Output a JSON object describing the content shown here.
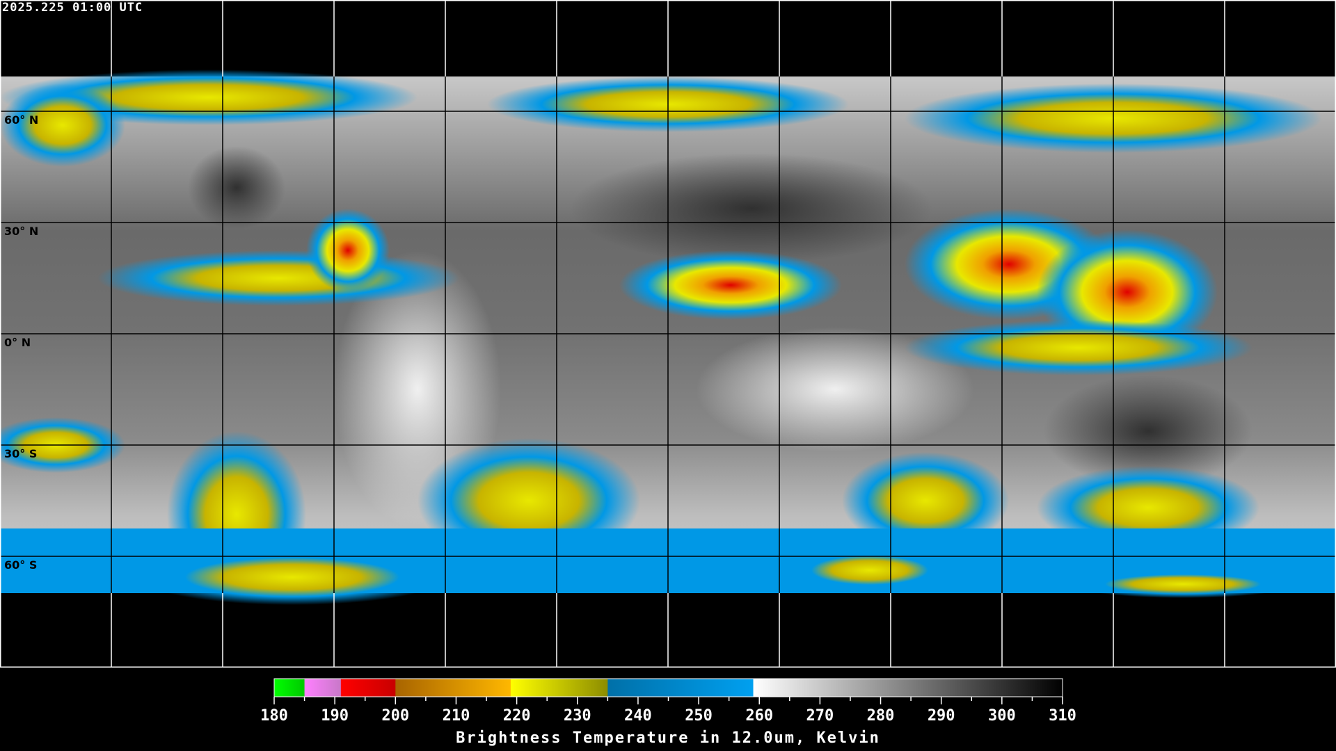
{
  "header": {
    "timestamp": "2025.225 01:00 UTC"
  },
  "map": {
    "projection": "equirectangular",
    "lon_grid_spacing_deg": 30,
    "lat_grid_spacing_deg": 30,
    "lat_labels": [
      "60° N",
      "30° N",
      "0° N",
      "30° S",
      "60° S"
    ],
    "lat_values": [
      60,
      30,
      0,
      -30,
      -60
    ],
    "data_lat_range": [
      76,
      -67
    ],
    "colors": {
      "background": "#000000",
      "coastline_polar": "#ffffff",
      "coastline_data": "#000000"
    }
  },
  "colorbar": {
    "title": "Brightness Temperature in 12.0um, Kelvin",
    "range": [
      180,
      310
    ],
    "tick_step": 5,
    "labels": [
      "180",
      "190",
      "200",
      "210",
      "220",
      "230",
      "240",
      "250",
      "260",
      "270",
      "280",
      "290",
      "300",
      "310"
    ],
    "segments": [
      {
        "from": 180,
        "to": 185,
        "c1": "#00ff00",
        "c2": "#00c800"
      },
      {
        "from": 185,
        "to": 191,
        "c1": "#ff80ff",
        "c2": "#c878c8"
      },
      {
        "from": 191,
        "to": 200,
        "c1": "#ff0000",
        "c2": "#c80000"
      },
      {
        "from": 200,
        "to": 219,
        "c1": "#a86400",
        "c2": "#ffb800"
      },
      {
        "from": 219,
        "to": 235,
        "c1": "#ffff00",
        "c2": "#8c8c00"
      },
      {
        "from": 235,
        "to": 259,
        "c1": "#0070a8",
        "c2": "#00a0f0"
      },
      {
        "from": 259,
        "to": 310,
        "c1": "#ffffff",
        "c2": "#000000"
      }
    ]
  }
}
